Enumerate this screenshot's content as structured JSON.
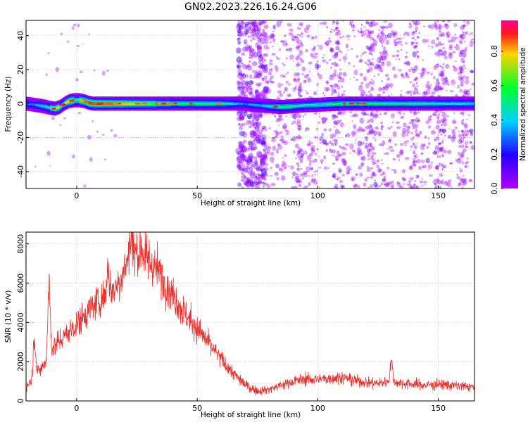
{
  "figure": {
    "title": "GN02.2023.226.16.24.G06"
  },
  "colors": {
    "snr_line": "#e8322e",
    "frame": "#000000",
    "grid": "#bbbbbb",
    "background": "#ffffff"
  },
  "chart_data": [
    {
      "type": "heatmap",
      "title": "GN02.2023.226.16.24.G06",
      "xlabel": "Height of straight line (km)",
      "ylabel": "Frequency (Hz)",
      "xlim": [
        -21,
        165
      ],
      "ylim": [
        -50,
        49
      ],
      "xticks": [
        0,
        50,
        100,
        150
      ],
      "yticks": [
        -40,
        -20,
        0,
        20,
        40
      ],
      "grid": true,
      "colorbar": {
        "label": "Normalized spectral amplitude",
        "range": [
          0.0,
          0.98
        ],
        "ticks": [
          0.0,
          0.2,
          0.4,
          0.6,
          0.8
        ],
        "colormap": "rainbow (violet → blue → cyan → green → yellow → red → magenta)"
      },
      "ridge": {
        "description": "Dominant spectral ridge near 0 Hz across the full height range; scattered low-amplitude noise above ~67 km",
        "x": [
          -21,
          -16,
          -12,
          -10,
          -8,
          -6,
          -4,
          -2,
          0,
          2,
          4,
          6,
          10,
          20,
          40,
          60,
          68,
          75,
          85,
          95,
          110,
          125,
          140,
          165
        ],
        "frequency": [
          0,
          -1,
          -2,
          -3,
          -3,
          -1,
          1,
          2,
          2,
          2,
          1,
          0,
          0,
          0,
          0,
          0,
          0,
          -1,
          -2,
          -1,
          0,
          0,
          0,
          0
        ],
        "amplitude": [
          0.3,
          0.35,
          0.45,
          0.7,
          0.75,
          0.6,
          0.8,
          0.9,
          0.6,
          0.85,
          0.9,
          0.95,
          0.9,
          0.8,
          0.55,
          0.5,
          0.3,
          0.35,
          0.55,
          0.45,
          0.55,
          0.5,
          0.45,
          0.4
        ]
      }
    },
    {
      "type": "line",
      "xlabel": "Height of straight line (km)",
      "ylabel": "SNR (10 * v/v)",
      "xlim": [
        -21,
        165
      ],
      "ylim": [
        0,
        8600
      ],
      "xticks": [
        0,
        50,
        100,
        150
      ],
      "yticks": [
        0,
        2000,
        4000,
        6000,
        8000
      ],
      "grid": true,
      "series": [
        {
          "x": [
            -21,
            -15,
            -12,
            -10,
            -5,
            0,
            5,
            10,
            15,
            18,
            20,
            22,
            25,
            28,
            32,
            35,
            40,
            45,
            50,
            55,
            60,
            65,
            70,
            75,
            80,
            85,
            90,
            95,
            100,
            105,
            110,
            115,
            120,
            125,
            130,
            135,
            140,
            145,
            150,
            155,
            160,
            165
          ],
          "values": [
            700,
            1600,
            2100,
            2700,
            3300,
            3900,
            4600,
            5200,
            5600,
            6200,
            6800,
            7400,
            7600,
            7300,
            6900,
            6400,
            5400,
            4400,
            3700,
            2900,
            2100,
            1400,
            800,
            500,
            600,
            800,
            1000,
            1100,
            1100,
            1150,
            1200,
            1050,
            950,
            900,
            1000,
            900,
            850,
            800,
            850,
            800,
            750,
            700
          ],
          "peaks": [
            {
              "x": -11.5,
              "value": 5900
            },
            {
              "x": -17.5,
              "value": 3300
            },
            {
              "x": 22.5,
              "value": 8550
            },
            {
              "x": 27,
              "value": 7800
            },
            {
              "x": 13,
              "value": 6800
            },
            {
              "x": 130.5,
              "value": 2000
            }
          ]
        }
      ]
    }
  ]
}
